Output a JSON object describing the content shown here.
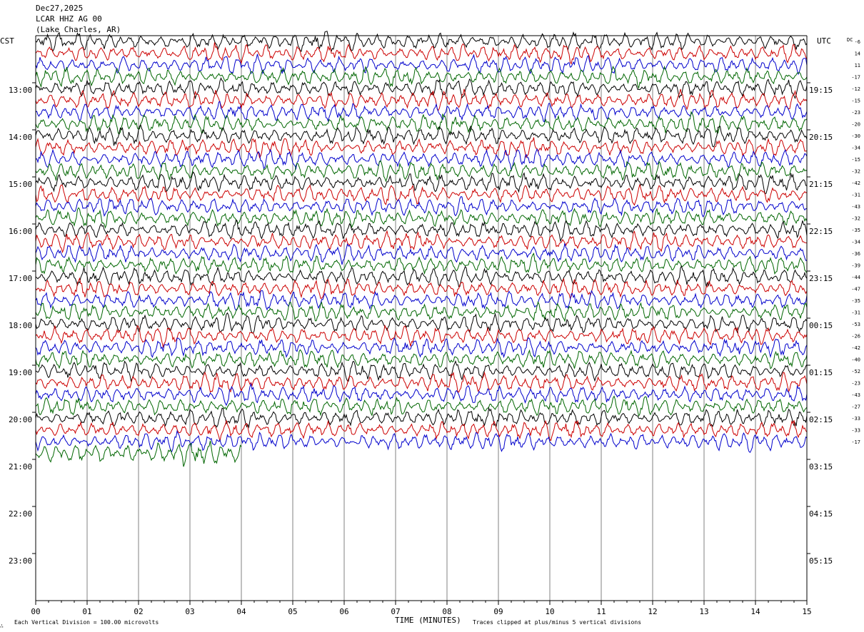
{
  "header": {
    "date": "Dec27,2025",
    "station": "LCAR HHZ AG 00",
    "location": "(Lake Charles, AR)"
  },
  "left_zone_label": "CST",
  "right_zone_label": "UTC",
  "dc_label": "DC",
  "footer": {
    "vertical_division": "Each Vertical Division =  100.00 microvolts",
    "clip_note": "Traces clipped at plus/minus 5 vertical divisions",
    "corner_mark": "∴"
  },
  "colors": {
    "cycle": [
      "#000000",
      "#cc0000",
      "#0000cc",
      "#006600"
    ],
    "grid": "#808080",
    "axis": "#000000"
  },
  "chart_data": {
    "type": "line",
    "title": "LCAR HHZ AG 00",
    "xlabel": "TIME (MINUTES)",
    "ylabel": "",
    "x_range": [
      0,
      15
    ],
    "x_ticks": [
      "00",
      "01",
      "02",
      "03",
      "04",
      "05",
      "06",
      "07",
      "08",
      "09",
      "10",
      "11",
      "12",
      "13",
      "14",
      "15"
    ],
    "left_time_labels": [
      "13:00",
      "14:00",
      "15:00",
      "16:00",
      "17:00",
      "18:00",
      "19:00",
      "20:00",
      "21:00",
      "22:00",
      "23:00"
    ],
    "right_time_labels": [
      "19:15",
      "20:15",
      "21:15",
      "22:15",
      "23:15",
      "00:15",
      "01:15",
      "02:15",
      "03:15",
      "04:15",
      "05:15"
    ],
    "dc_offsets": [
      -6,
      14,
      11,
      -17,
      -12,
      -15,
      -23,
      -20,
      -30,
      -34,
      -15,
      -32,
      -42,
      -31,
      -43,
      -32,
      -35,
      -34,
      -36,
      -39,
      -44,
      -47,
      -35,
      -31,
      -53,
      -26,
      -42,
      -40,
      -52,
      -23,
      -43,
      -27,
      -33,
      -33,
      -17
    ],
    "trace_count": 36,
    "last_trace_end_minute": 4.0
  }
}
